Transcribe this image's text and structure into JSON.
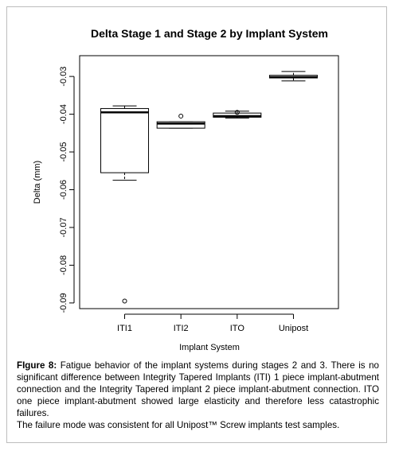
{
  "chart_data": {
    "type": "box",
    "title": "Delta Stage 1 and Stage 2 by Implant System",
    "xlabel": "Implant System",
    "ylabel": "Delta (mm)",
    "ylim": [
      -0.0915,
      -0.0245
    ],
    "yticks": [
      -0.03,
      -0.04,
      -0.05,
      -0.06,
      -0.07,
      -0.08,
      -0.09
    ],
    "categories": [
      "ITI1",
      "ITI2",
      "ITO",
      "Unipost"
    ],
    "boxes": [
      {
        "whisker_low": -0.0575,
        "q1": -0.0555,
        "median": -0.0395,
        "q3": -0.0385,
        "whisker_high": -0.0378,
        "outliers": [
          -0.0895
        ]
      },
      {
        "whisker_low": -0.0437,
        "q1": -0.0437,
        "median": -0.0425,
        "q3": -0.042,
        "whisker_high": -0.042,
        "outliers": [
          -0.0405
        ]
      },
      {
        "whisker_low": -0.041,
        "q1": -0.0408,
        "median": -0.0405,
        "q3": -0.0397,
        "whisker_high": -0.0392,
        "outliers": [
          -0.0395
        ]
      },
      {
        "whisker_low": -0.0312,
        "q1": -0.0304,
        "median": -0.0302,
        "q3": -0.0297,
        "whisker_high": -0.0287,
        "outliers": []
      }
    ]
  },
  "caption": {
    "label": "FIgure 8:",
    "text": "Fatigue behavior of the implant systems during stages 2 and 3. There is no significant difference between Integrity Tapered Implants (ITI) 1 piece implant-abutment connection and the Integrity Tapered implant 2 piece implant-abutment connection. ITO one piece implant-abutment showed large elasticity and therefore less catastrophic failures.",
    "text2": "The failure mode was consistent for all Unipost™ Screw implants test samples."
  }
}
